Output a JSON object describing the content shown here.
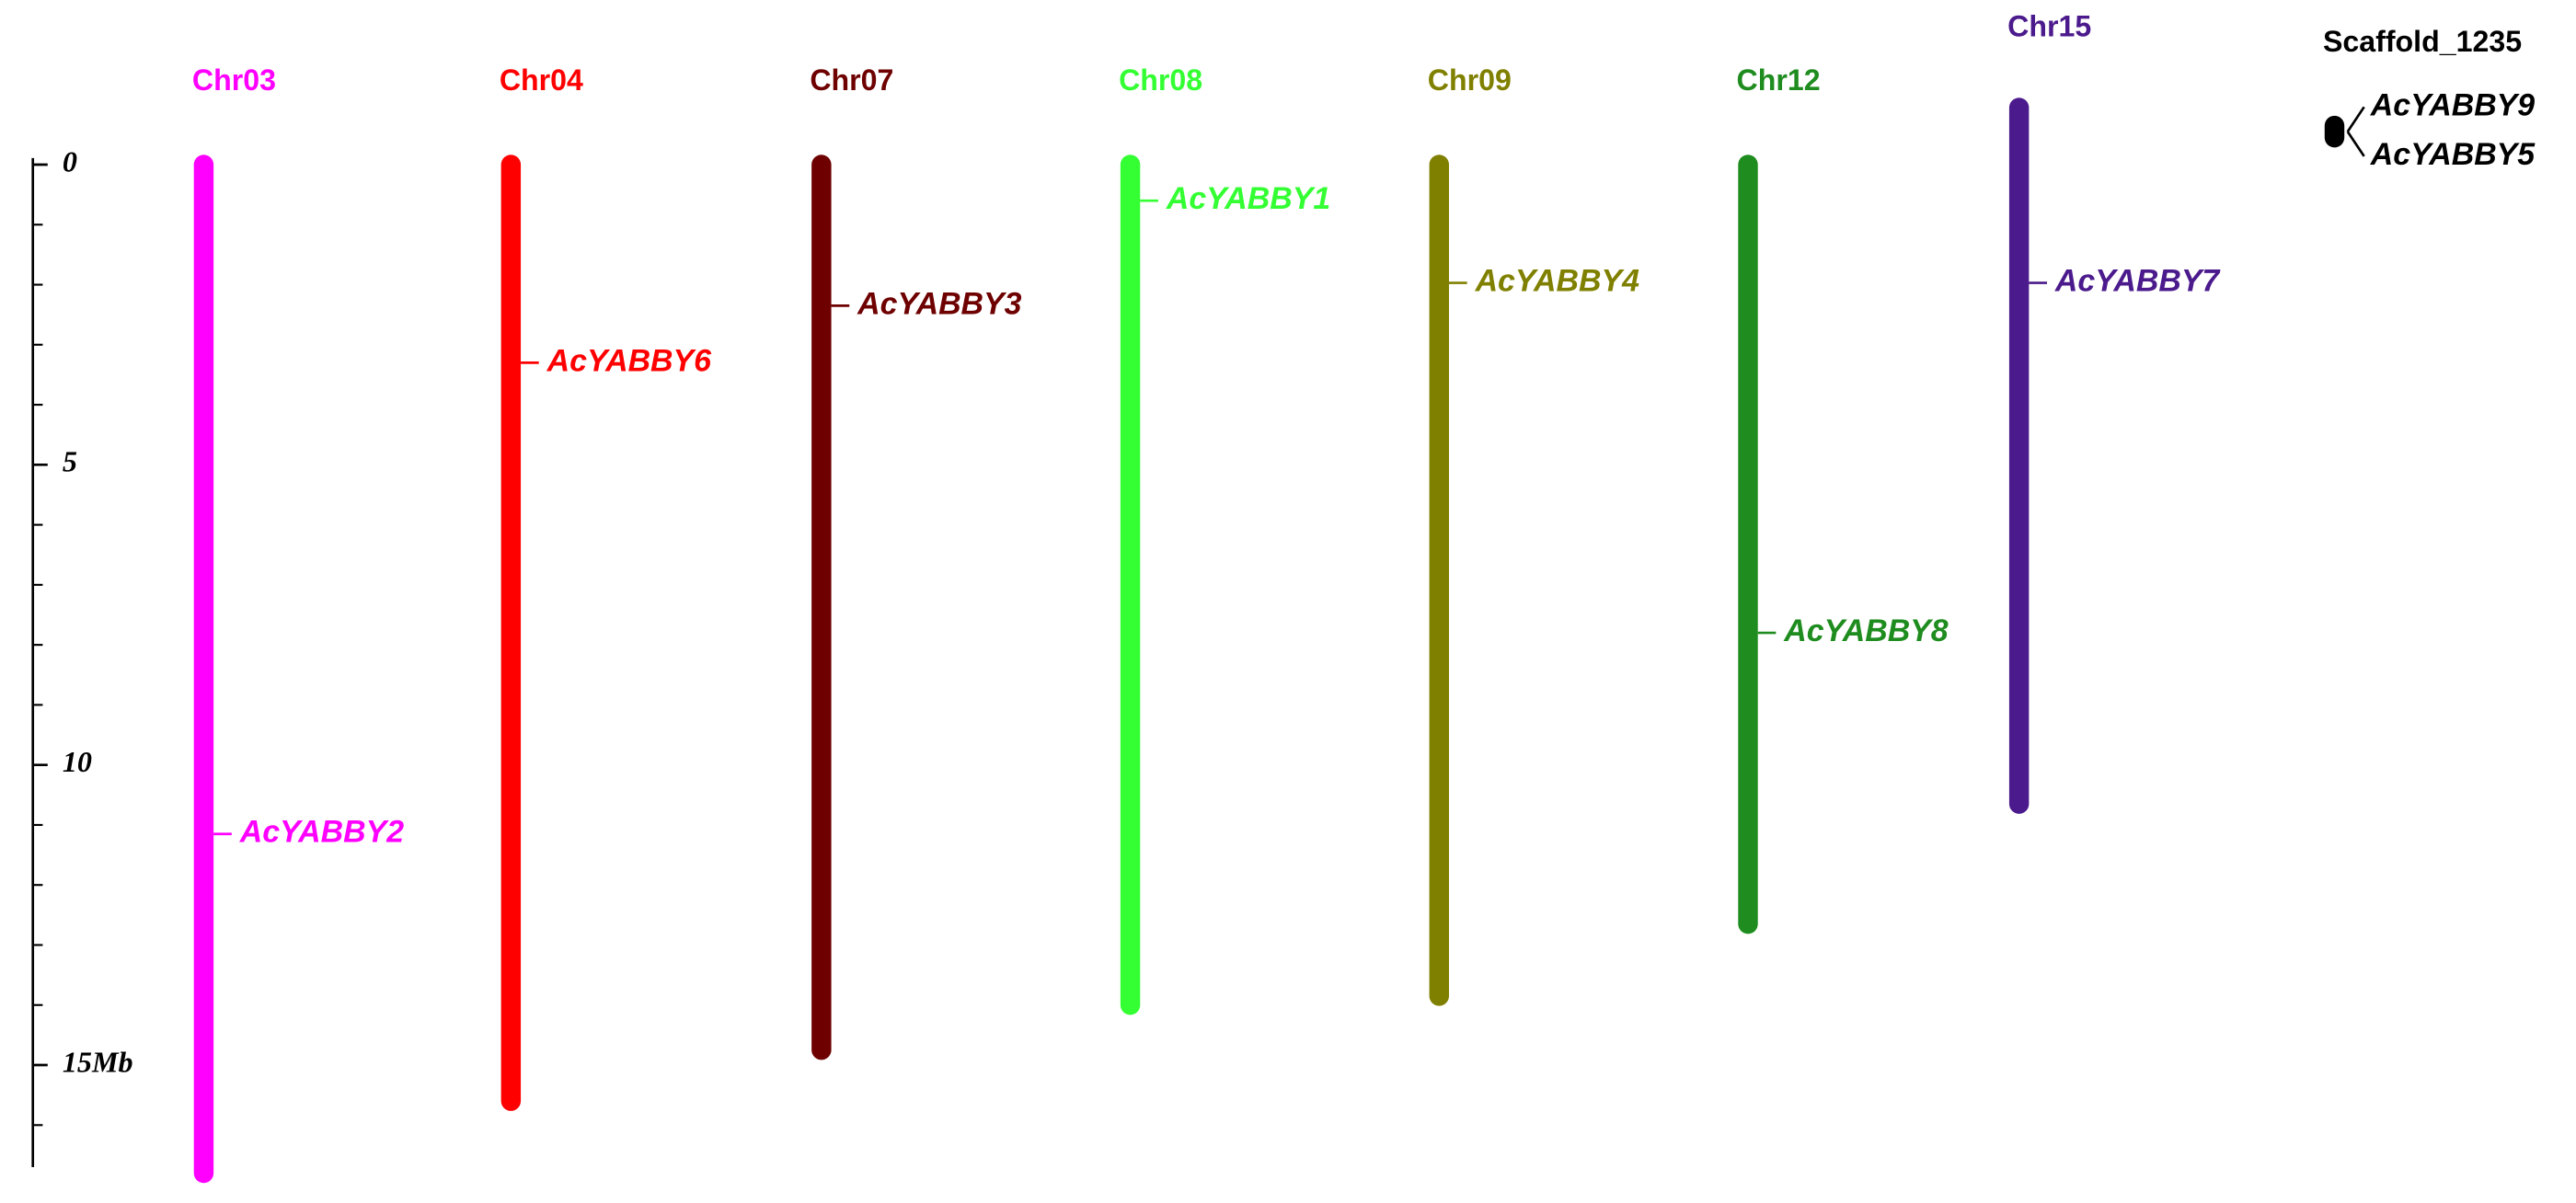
{
  "chart_data": {
    "type": "ideogram",
    "ylim": [
      0,
      16.7
    ],
    "yticks": [
      0,
      5,
      10,
      {
        "value": 15,
        "label": "15Mb"
      }
    ],
    "yminorticks": [
      0,
      1,
      2,
      3,
      4,
      5,
      6,
      7,
      8,
      9,
      10,
      11,
      12,
      13,
      14,
      15,
      16
    ],
    "chromosomes": [
      {
        "name": "Chr03",
        "color": "#ff00ff",
        "start": 0,
        "end": 16.8,
        "genes": [
          {
            "name": "AcYABBY2",
            "position": 11.15
          }
        ]
      },
      {
        "name": "Chr04",
        "color": "#ff0000",
        "start": 0,
        "end": 15.6,
        "genes": [
          {
            "name": "AcYABBY6",
            "position": 3.3
          }
        ]
      },
      {
        "name": "Chr07",
        "color": "#6e0000",
        "start": 0,
        "end": 14.75,
        "genes": [
          {
            "name": "AcYABBY3",
            "position": 2.35
          }
        ]
      },
      {
        "name": "Chr08",
        "color": "#33ff33",
        "start": 0,
        "end": 14.0,
        "genes": [
          {
            "name": "AcYABBY1",
            "position": 0.6
          }
        ]
      },
      {
        "name": "Chr09",
        "color": "#808000",
        "start": 0,
        "end": 13.85,
        "genes": [
          {
            "name": "AcYABBY4",
            "position": 1.97
          }
        ]
      },
      {
        "name": "Chr12",
        "color": "#1e8c1e",
        "start": 0,
        "end": 12.65,
        "genes": [
          {
            "name": "AcYABBY8",
            "position": 7.8
          }
        ]
      },
      {
        "name": "Chr15",
        "color": "#4b1a8c",
        "start": -0.95,
        "end": 10.65,
        "genes": [
          {
            "name": "AcYABBY7",
            "position": 1.97
          }
        ]
      },
      {
        "name": "Scaffold_1235",
        "color": "#000000",
        "start": -0.65,
        "end": -0.45,
        "genes": [
          {
            "name": "AcYABBY9",
            "position": -0.55
          },
          {
            "name": "AcYABBY5",
            "position": -0.55
          }
        ]
      }
    ]
  }
}
